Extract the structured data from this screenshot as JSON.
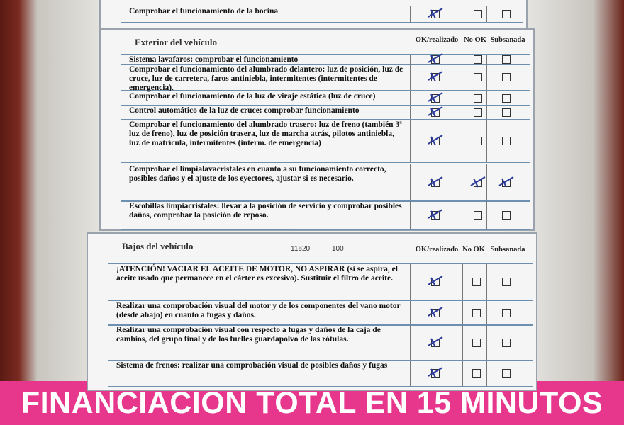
{
  "columns": {
    "ok": "OK/realizado",
    "nook": "No OK",
    "sub": "Subsanada"
  },
  "sections": [
    {
      "rows": [
        {
          "text": "Comprobar el funcionamiento de la bocina",
          "checked": [
            true,
            false,
            false
          ]
        }
      ]
    },
    {
      "title": "Exterior del vehículo",
      "rows": [
        {
          "text": "Sistema lavafaros: comprobar el funcionamiento",
          "checked": [
            true,
            false,
            false
          ]
        },
        {
          "text": "Comprobar el funcionamiento del alumbrado delantero: luz de posición, luz de cruce, luz de carretera, faros antiniebla, intermitentes (intermitentes de emergencia).",
          "checked": [
            true,
            false,
            false
          ]
        },
        {
          "text": "Comprobar el funcionamiento de la luz de viraje estática (luz de cruce)",
          "checked": [
            true,
            false,
            false
          ]
        },
        {
          "text": "Control automático de la luz de cruce: comprobar funcionamiento",
          "checked": [
            true,
            false,
            false
          ]
        },
        {
          "text": "Comprobar el funcionamiento del alumbrado trasero: luz de freno (también 3ª luz de freno), luz de posición trasera, luz de marcha atrás, pilotos antiniebla, luz de matrícula, intermitentes (interm. de emergencia)",
          "checked": [
            true,
            false,
            false
          ]
        },
        {
          "text": "Comprobar el limpialavacristales en cuanto a su funcionamiento correcto, posibles daños y el ajuste de los eyectores, ajustar si es necesario.",
          "checked": [
            true,
            true,
            true
          ]
        },
        {
          "text": "Escobillas limpiacristales: llevar a la posición de servicio y comprobar posibles daños, comprobar la posición de reposo.",
          "checked": [
            true,
            false,
            false
          ]
        }
      ]
    },
    {
      "title": "Bajos del vehículo",
      "codes": [
        "11620",
        "100"
      ],
      "rows": [
        {
          "text": "¡ATENCIÓN! VACIAR EL ACEITE DE MOTOR, NO ASPIRAR (si se aspira, el aceite usado que permanece en el cárter es excesivo). Sustituir el filtro de aceite.",
          "checked": [
            true,
            false,
            false
          ]
        },
        {
          "text": "Realizar una comprobación visual del motor y de los componentes del vano motor (desde abajo) en cuanto a fugas y daños.",
          "checked": [
            true,
            false,
            false
          ]
        },
        {
          "text": "Realizar una comprobación visual con respecto a fugas y daños de la caja de cambios, del grupo final y de los fuelles guardapolvo de las rótulas.",
          "checked": [
            true,
            false,
            false
          ]
        },
        {
          "text": "Sistema de frenos: realizar una comprobación visual de posibles daños y fugas",
          "checked": [
            true,
            false,
            false
          ]
        }
      ]
    }
  ],
  "banner": "FINANCIACIÓN TOTAL EN 15 MINUTOS"
}
